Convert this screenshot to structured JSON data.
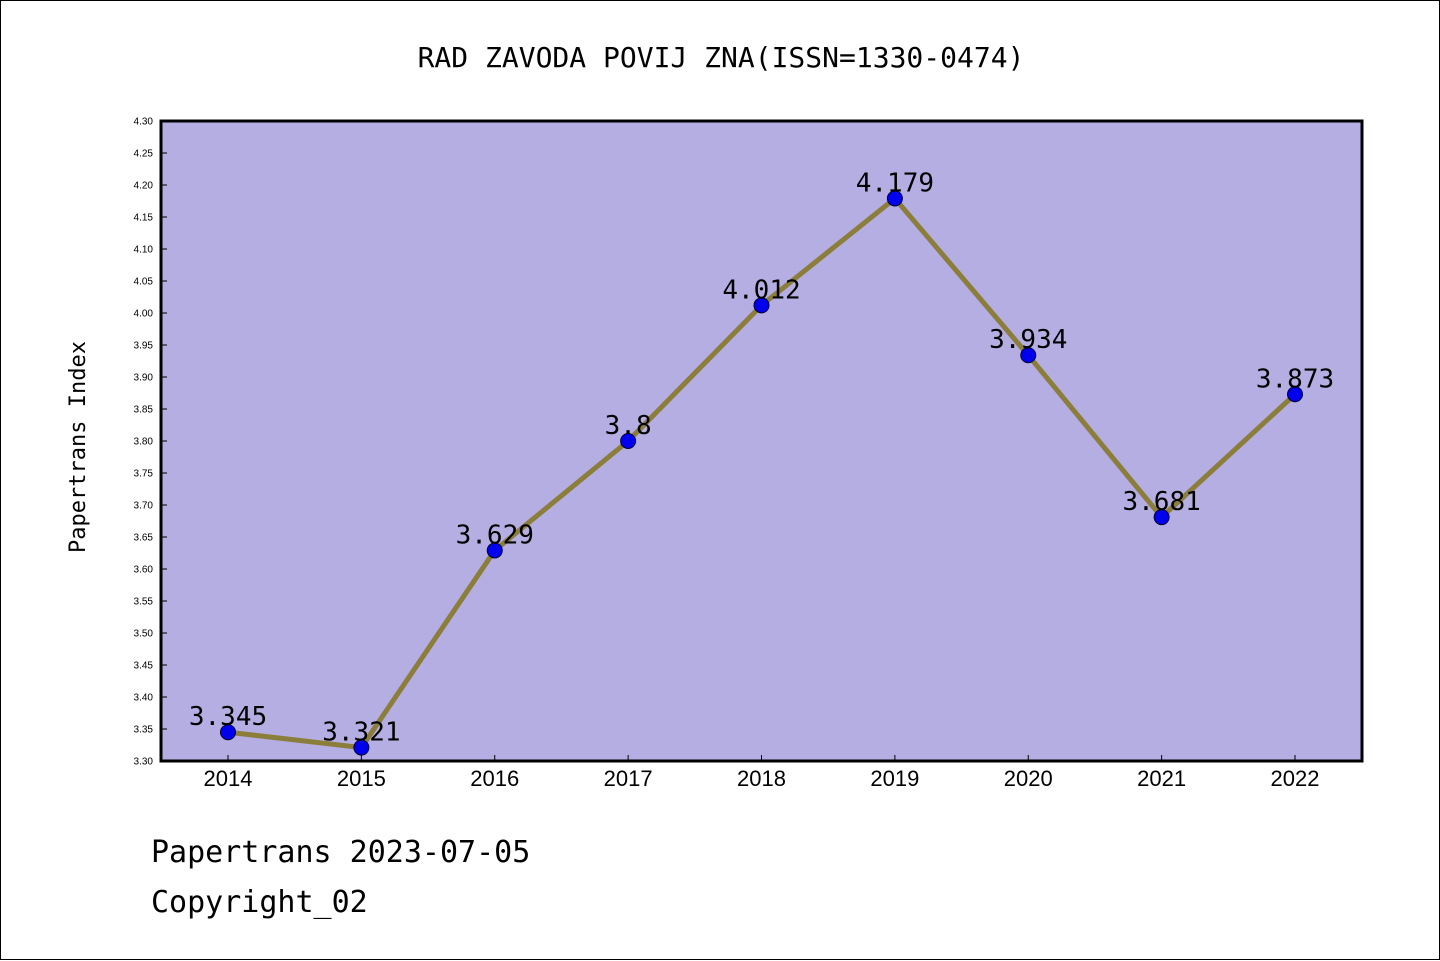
{
  "chart_data": {
    "type": "line",
    "title": "RAD ZAVODA POVIJ ZNA(ISSN=1330-0474)",
    "xlabel": "",
    "ylabel": "Papertrans Index",
    "categories": [
      "2014",
      "2015",
      "2016",
      "2017",
      "2018",
      "2019",
      "2020",
      "2021",
      "2022"
    ],
    "values": [
      3.345,
      3.321,
      3.629,
      3.8,
      4.012,
      4.179,
      3.934,
      3.681,
      3.873
    ],
    "data_labels": [
      "3.345",
      "3.321",
      "3.629",
      "3.8",
      "4.012",
      "4.179",
      "3.934",
      "3.681",
      "3.873"
    ],
    "ylim": [
      3.3,
      4.3
    ],
    "yticks": [
      "3.30",
      "3.35",
      "3.40",
      "3.45",
      "3.50",
      "3.55",
      "3.60",
      "3.65",
      "3.70",
      "3.75",
      "3.80",
      "3.85",
      "3.90",
      "3.95",
      "4.00",
      "4.05",
      "4.10",
      "4.15",
      "4.20",
      "4.25",
      "4.30"
    ],
    "grid": false,
    "colors": {
      "plot_background": "#b5aee2",
      "line": "#8b7d3a",
      "marker": "#0000ee"
    }
  },
  "footer": {
    "line1": "Papertrans 2023-07-05",
    "line2": "Copyright_02"
  }
}
